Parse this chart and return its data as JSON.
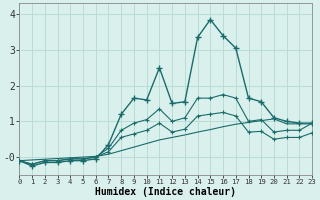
{
  "xlabel": "Humidex (Indice chaleur)",
  "x": [
    0,
    1,
    2,
    3,
    4,
    5,
    6,
    7,
    8,
    9,
    10,
    11,
    12,
    13,
    14,
    15,
    16,
    17,
    18,
    19,
    20,
    21,
    22,
    23
  ],
  "line_main": [
    -0.1,
    -0.25,
    -0.15,
    -0.15,
    -0.1,
    -0.1,
    -0.05,
    0.35,
    1.2,
    1.65,
    1.6,
    2.5,
    1.5,
    1.55,
    3.35,
    3.85,
    3.4,
    3.05,
    1.65,
    1.55,
    1.1,
    1.0,
    0.95,
    0.95
  ],
  "line_upper": [
    -0.1,
    -0.2,
    -0.1,
    -0.1,
    -0.05,
    -0.05,
    0.0,
    0.25,
    0.75,
    0.95,
    1.05,
    1.35,
    1.0,
    1.1,
    1.65,
    1.65,
    1.75,
    1.65,
    1.0,
    1.05,
    0.7,
    0.75,
    0.75,
    0.95
  ],
  "line_lower": [
    -0.1,
    -0.2,
    -0.1,
    -0.1,
    -0.05,
    -0.05,
    0.0,
    0.15,
    0.55,
    0.65,
    0.75,
    0.95,
    0.7,
    0.78,
    1.15,
    1.2,
    1.25,
    1.15,
    0.7,
    0.72,
    0.5,
    0.55,
    0.55,
    0.68
  ],
  "line_linear": [
    -0.1,
    -0.08,
    -0.06,
    -0.04,
    -0.02,
    0.0,
    0.02,
    0.08,
    0.18,
    0.28,
    0.38,
    0.48,
    0.55,
    0.62,
    0.7,
    0.77,
    0.85,
    0.92,
    0.97,
    1.02,
    1.07,
    0.93,
    0.93,
    0.93
  ],
  "bg_color": "#daf0ec",
  "grid_color": "#b8dcd7",
  "line_color": "#1a6b6b",
  "ylim": [
    -0.5,
    4.3
  ],
  "xlim": [
    0,
    23
  ],
  "yticks": [
    0,
    1,
    2,
    3,
    4
  ],
  "ytick_labels": [
    "-0",
    "1",
    "2",
    "3",
    "4"
  ],
  "xticks": [
    0,
    1,
    2,
    3,
    4,
    5,
    6,
    7,
    8,
    9,
    10,
    11,
    12,
    13,
    14,
    15,
    16,
    17,
    18,
    19,
    20,
    21,
    22,
    23
  ]
}
